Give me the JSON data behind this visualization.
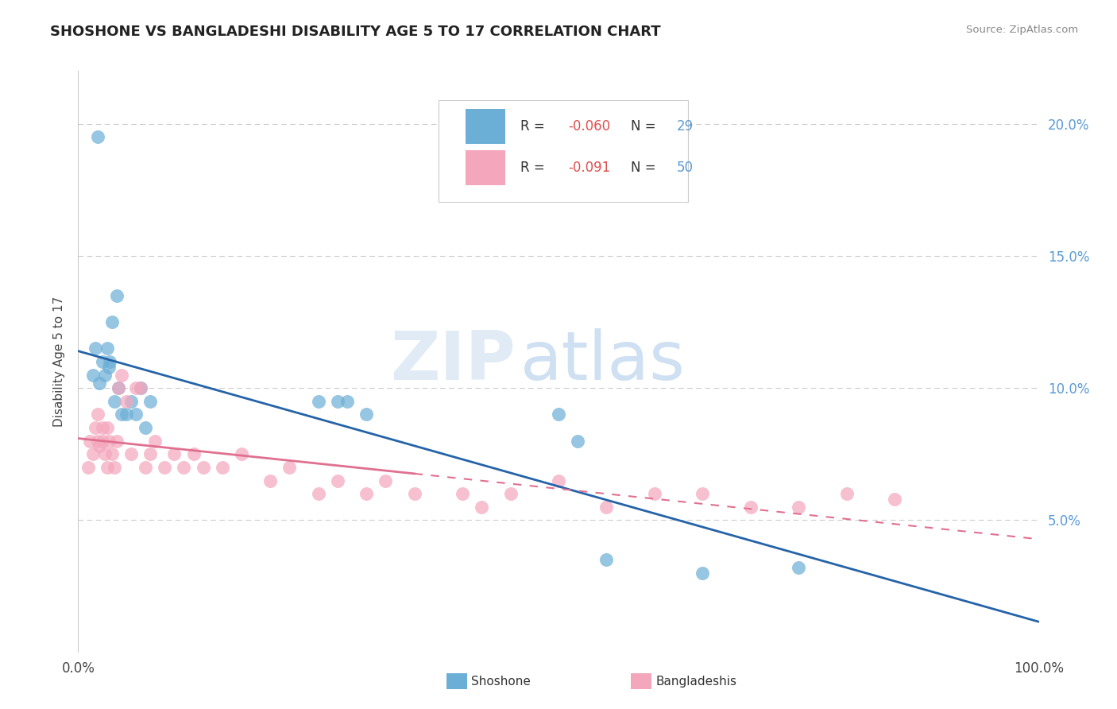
{
  "title": "SHOSHONE VS BANGLADESHI DISABILITY AGE 5 TO 17 CORRELATION CHART",
  "source": "Source: ZipAtlas.com",
  "ylabel": "Disability Age 5 to 17",
  "xlim": [
    0,
    100
  ],
  "ylim": [
    0,
    22
  ],
  "ytick_vals": [
    5,
    10,
    15,
    20
  ],
  "legend_blue_r": "-0.060",
  "legend_blue_n": "29",
  "legend_pink_r": "-0.091",
  "legend_pink_n": "50",
  "shoshone_color": "#6baed6",
  "bangladeshi_color": "#f4a6bc",
  "trend_blue": "#2563a8",
  "trend_pink": "#e07090",
  "watermark_zip": "ZIP",
  "watermark_atlas": "atlas",
  "shoshone_x": [
    1.5,
    1.8,
    2.2,
    2.5,
    2.8,
    3.0,
    3.2,
    3.5,
    4.0,
    4.5,
    5.5,
    6.5,
    7.5,
    25.0,
    28.0,
    55.0,
    65.0,
    75.0,
    50.0,
    52.0,
    30.0,
    3.3,
    3.8,
    4.2,
    2.0,
    5.0,
    6.0,
    7.0,
    27.0
  ],
  "shoshone_y": [
    10.5,
    11.5,
    10.2,
    11.0,
    10.5,
    11.5,
    10.8,
    12.5,
    13.5,
    9.0,
    9.5,
    10.0,
    9.5,
    9.5,
    9.5,
    3.5,
    3.0,
    3.2,
    9.0,
    8.0,
    9.0,
    11.0,
    9.5,
    10.0,
    19.5,
    9.0,
    9.0,
    8.5,
    9.5
  ],
  "bangladeshi_x": [
    1.0,
    1.2,
    1.5,
    1.8,
    2.0,
    2.0,
    2.2,
    2.5,
    2.5,
    2.8,
    3.0,
    3.0,
    3.2,
    3.5,
    3.8,
    4.0,
    4.2,
    4.5,
    5.0,
    5.5,
    6.0,
    6.5,
    7.0,
    7.5,
    8.0,
    9.0,
    10.0,
    11.0,
    12.0,
    13.0,
    15.0,
    17.0,
    20.0,
    22.0,
    25.0,
    27.0,
    30.0,
    32.0,
    35.0,
    40.0,
    42.0,
    45.0,
    50.0,
    55.0,
    60.0,
    65.0,
    70.0,
    75.0,
    80.0,
    85.0
  ],
  "bangladeshi_y": [
    7.0,
    8.0,
    7.5,
    8.5,
    8.0,
    9.0,
    7.8,
    8.5,
    8.0,
    7.5,
    8.5,
    7.0,
    8.0,
    7.5,
    7.0,
    8.0,
    10.0,
    10.5,
    9.5,
    7.5,
    10.0,
    10.0,
    7.0,
    7.5,
    8.0,
    7.0,
    7.5,
    7.0,
    7.5,
    7.0,
    7.0,
    7.5,
    6.5,
    7.0,
    6.0,
    6.5,
    6.0,
    6.5,
    6.0,
    6.0,
    5.5,
    6.0,
    6.5,
    5.5,
    6.0,
    6.0,
    5.5,
    5.5,
    6.0,
    5.8
  ]
}
